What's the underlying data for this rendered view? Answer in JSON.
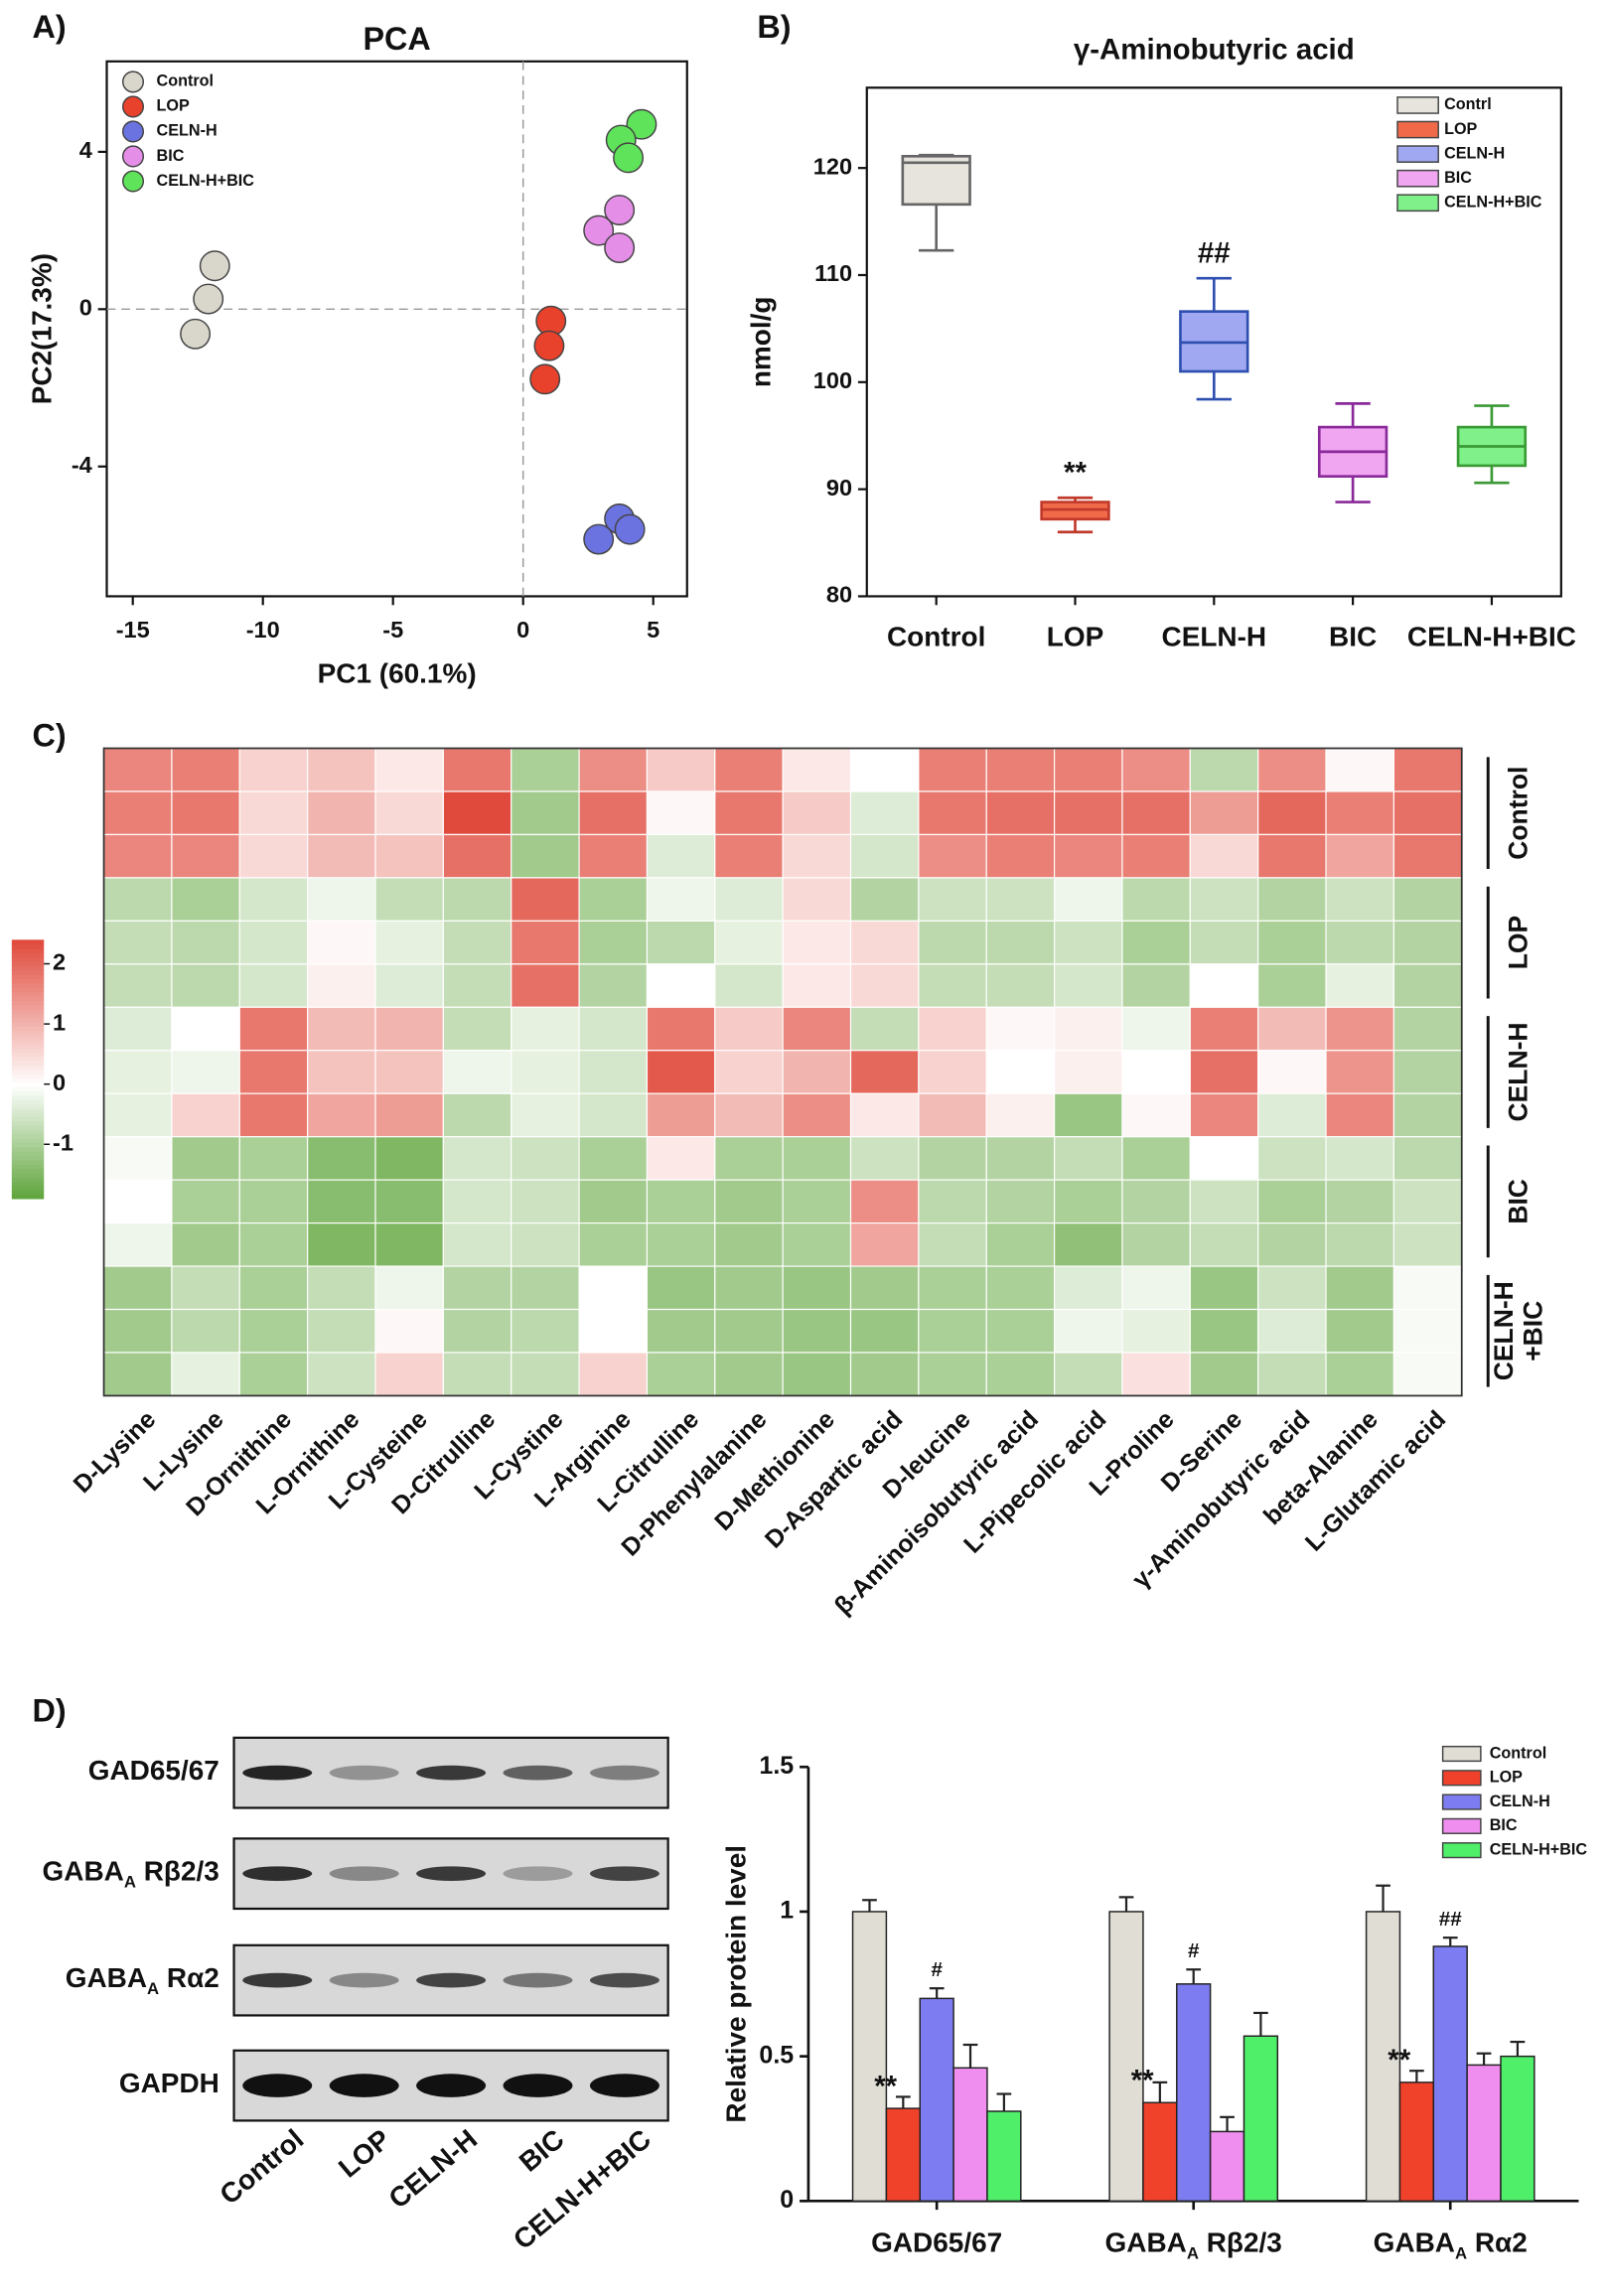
{
  "panels": [
    "A)",
    "B)",
    "C)",
    "D)"
  ],
  "chart_data": [
    {
      "type": "scatter",
      "title": "PCA",
      "xlabel": "PC1 (60.1%)",
      "ylabel": "PC2(17.3%)",
      "xlim": [
        -16,
        6.3
      ],
      "ylim": [
        -7.3,
        6.3
      ],
      "xticks": [
        -15,
        -10,
        -5,
        0,
        5
      ],
      "yticks": [
        4,
        0,
        -4
      ],
      "zero_lines": true,
      "legend": "upper left",
      "series": [
        {
          "name": "Control",
          "color": "#d9d6cc",
          "x": [
            -11.85,
            -12.1,
            -12.6
          ],
          "y": [
            1.1,
            0.26,
            -0.63
          ]
        },
        {
          "name": "LOP",
          "color": "#e8412c",
          "x": [
            1.07,
            1.0,
            0.84
          ],
          "y": [
            -0.3,
            -0.93,
            -1.78
          ]
        },
        {
          "name": "CELN-H",
          "color": "#6b73e0",
          "x": [
            3.7,
            4.1,
            2.9
          ],
          "y": [
            -5.33,
            -5.6,
            -5.85
          ]
        },
        {
          "name": "BIC",
          "color": "#e58ee8",
          "x": [
            3.7,
            2.9,
            3.7
          ],
          "y": [
            2.52,
            2.0,
            1.56
          ]
        },
        {
          "name": "CELN-H+BIC",
          "color": "#5fe35a",
          "x": [
            4.55,
            3.76,
            4.04
          ],
          "y": [
            4.7,
            4.3,
            3.85
          ]
        }
      ]
    },
    {
      "type": "box",
      "title": "γ-Aminobutyric acid",
      "ylabel": "nmol/g",
      "ylim": [
        80,
        127.5
      ],
      "yticks": [
        80,
        90,
        100,
        110,
        120
      ],
      "legend": "upper right",
      "categories": [
        "Control",
        "LOP",
        "CELN-H",
        "BIC",
        "CELN-H+BIC"
      ],
      "series": [
        {
          "name": "Contrl",
          "fill": "#e6e4dd",
          "stroke": "#666666",
          "values": {
            "min": 112.3,
            "q1": 116.6,
            "median": 120.5,
            "q3": 121.1,
            "max": 121.2
          }
        },
        {
          "name": "LOP",
          "fill": "#f06a4a",
          "stroke": "#c0392b",
          "values": {
            "min": 86,
            "q1": 87.2,
            "median": 88.1,
            "q3": 88.8,
            "max": 89.2
          }
        },
        {
          "name": "CELN-H",
          "fill": "#9fa8f0",
          "stroke": "#2f4fb0",
          "values": {
            "min": 98.4,
            "q1": 101,
            "median": 103.7,
            "q3": 106.6,
            "max": 109.7
          }
        },
        {
          "name": "BIC",
          "fill": "#f0a6f0",
          "stroke": "#8a2a9a",
          "values": {
            "min": 88.8,
            "q1": 91.2,
            "median": 93.5,
            "q3": 95.8,
            "max": 98
          }
        },
        {
          "name": "CELN-H+BIC",
          "fill": "#7ff08a",
          "stroke": "#3a9a35",
          "values": {
            "min": 90.6,
            "q1": 92.2,
            "median": 94,
            "q3": 95.8,
            "max": 97.8
          }
        }
      ],
      "annotations": [
        {
          "text": "**",
          "x": "LOP"
        },
        {
          "text": "##",
          "x": "CELN-H"
        }
      ]
    },
    {
      "type": "heatmap",
      "zlim": [
        -1.9,
        2.4
      ],
      "zticks": [
        2,
        1,
        0,
        -1
      ],
      "colors": [
        "#5ea43a",
        "#ffffff",
        "#e04a3c"
      ],
      "columns": [
        "D-Lysine",
        "L-Lysine",
        "D-Ornithine",
        "L-Ornithine",
        "L-Cysteine",
        "D-Citrulline",
        "L-Cystine",
        "L-Arginine",
        "L-Citrulline",
        "D-Phenylalanine",
        "D-Methionine",
        "D-Aspartic acid",
        "D-leucine",
        "β-Aminoisobutyric acid",
        "L-Pipecolic acid",
        "L-Proline",
        "D-Serine",
        "γ-Aminobutyric acid",
        "beta-Alanine",
        "L-Glutamic acid"
      ],
      "groups": [
        [
          "Control"
        ],
        [
          "LOP"
        ],
        [
          "CELN-H"
        ],
        [
          "BIC"
        ],
        [
          "CELN-H",
          "+BIC"
        ]
      ],
      "values": [
        [
          1.6,
          1.7,
          0.6,
          0.8,
          0.3,
          1.8,
          -1.0,
          1.5,
          0.7,
          1.7,
          0.3,
          0.0,
          1.7,
          1.7,
          1.7,
          1.5,
          -0.8,
          1.5,
          0.1,
          1.8
        ],
        [
          1.7,
          1.8,
          0.5,
          1.0,
          0.5,
          2.4,
          -1.1,
          1.9,
          0.1,
          1.8,
          0.7,
          -0.4,
          1.8,
          1.9,
          1.9,
          1.9,
          1.3,
          2.0,
          1.7,
          1.9
        ],
        [
          1.6,
          1.6,
          0.5,
          0.9,
          0.8,
          1.9,
          -1.1,
          1.7,
          -0.4,
          1.7,
          0.5,
          -0.5,
          1.5,
          1.7,
          1.6,
          1.7,
          0.5,
          1.8,
          1.2,
          1.8
        ],
        [
          -0.8,
          -1.0,
          -0.5,
          -0.2,
          -0.7,
          -0.8,
          2.0,
          -1.0,
          -0.2,
          -0.4,
          0.5,
          -0.9,
          -0.6,
          -0.6,
          -0.2,
          -0.8,
          -0.6,
          -0.9,
          -0.6,
          -0.9
        ],
        [
          -0.7,
          -0.8,
          -0.5,
          0.1,
          -0.3,
          -0.7,
          1.8,
          -1.0,
          -0.8,
          -0.3,
          0.3,
          0.5,
          -0.8,
          -0.8,
          -0.6,
          -1.0,
          -0.7,
          -1.0,
          -0.8,
          -0.9
        ],
        [
          -0.7,
          -0.8,
          -0.5,
          0.2,
          -0.4,
          -0.7,
          1.9,
          -0.9,
          0.0,
          -0.5,
          0.3,
          0.5,
          -0.7,
          -0.7,
          -0.5,
          -0.9,
          0.0,
          -1.0,
          -0.3,
          -0.9
        ],
        [
          -0.4,
          0.0,
          1.8,
          0.9,
          1.0,
          -0.7,
          -0.3,
          -0.5,
          1.8,
          0.7,
          1.6,
          -0.7,
          0.6,
          0.1,
          0.2,
          -0.2,
          1.7,
          0.9,
          1.4,
          -0.9
        ],
        [
          -0.3,
          -0.2,
          1.8,
          0.8,
          0.8,
          -0.2,
          -0.3,
          -0.5,
          2.2,
          0.6,
          1.0,
          2.0,
          0.6,
          0.0,
          0.2,
          0.0,
          1.9,
          0.1,
          1.4,
          -0.9
        ],
        [
          -0.3,
          0.6,
          1.8,
          1.2,
          1.3,
          -0.8,
          -0.3,
          -0.5,
          1.3,
          0.9,
          1.5,
          0.3,
          0.9,
          0.2,
          -1.2,
          0.1,
          1.6,
          -0.4,
          1.6,
          -0.9
        ],
        [
          -0.1,
          -1.1,
          -1.0,
          -1.4,
          -1.5,
          -0.5,
          -0.6,
          -1.0,
          0.3,
          -1.0,
          -1.0,
          -0.6,
          -0.9,
          -0.9,
          -0.7,
          -1.0,
          0.0,
          -0.6,
          -0.5,
          -0.8
        ],
        [
          0.0,
          -1.0,
          -1.0,
          -1.4,
          -1.4,
          -0.5,
          -0.6,
          -1.1,
          -1.0,
          -1.1,
          -1.0,
          1.5,
          -0.8,
          -0.9,
          -1.0,
          -0.9,
          -0.6,
          -1.0,
          -0.9,
          -0.6
        ],
        [
          -0.2,
          -1.1,
          -1.0,
          -1.5,
          -1.5,
          -0.5,
          -0.6,
          -1.0,
          -1.0,
          -1.1,
          -1.0,
          1.2,
          -0.7,
          -1.0,
          -1.3,
          -0.9,
          -0.7,
          -0.9,
          -0.8,
          -0.6
        ],
        [
          -1.1,
          -0.7,
          -1.0,
          -0.7,
          -0.2,
          -0.9,
          -0.9,
          0.0,
          -1.2,
          -1.1,
          -1.2,
          -1.1,
          -1.0,
          -1.0,
          -0.4,
          -0.2,
          -1.2,
          -0.6,
          -1.1,
          -0.1
        ],
        [
          -1.1,
          -0.8,
          -1.0,
          -0.7,
          0.1,
          -0.9,
          -0.8,
          0.0,
          -1.1,
          -1.1,
          -1.2,
          -1.2,
          -1.0,
          -1.0,
          -0.2,
          -0.3,
          -1.2,
          -0.4,
          -1.1,
          -0.1
        ],
        [
          -1.1,
          -0.3,
          -1.0,
          -0.6,
          0.6,
          -0.7,
          -0.7,
          0.6,
          -1.0,
          -1.1,
          -1.2,
          -1.1,
          -1.0,
          -1.0,
          -0.7,
          0.4,
          -1.1,
          -0.7,
          -1.0,
          -0.1
        ]
      ]
    },
    {
      "type": "bar",
      "ylabel": "Relative protein level",
      "ylim": [
        0,
        1.5
      ],
      "yticks": [
        0,
        0.5,
        1,
        1.5
      ],
      "legend": "upper right",
      "categories": [
        [
          "GAD65/67"
        ],
        [
          "GABA",
          "A",
          " Rβ2/3"
        ],
        [
          "GABA",
          "A",
          " Rα2"
        ]
      ],
      "series": [
        {
          "name": "Control",
          "color": "#e0ddd5",
          "values": [
            1.0,
            1.0,
            1.0
          ],
          "errors": [
            0.04,
            0.05,
            0.09
          ]
        },
        {
          "name": "LOP",
          "color": "#f0412a",
          "values": [
            0.32,
            0.34,
            0.41
          ],
          "errors": [
            0.04,
            0.07,
            0.04
          ]
        },
        {
          "name": "CELN-H",
          "color": "#7d7cf0",
          "values": [
            0.7,
            0.75,
            0.88
          ],
          "errors": [
            0.035,
            0.05,
            0.03
          ]
        },
        {
          "name": "BIC",
          "color": "#f08ef0",
          "values": [
            0.46,
            0.24,
            0.47
          ],
          "errors": [
            0.08,
            0.05,
            0.04
          ]
        },
        {
          "name": "CELN-H+BIC",
          "color": "#4fef6a",
          "values": [
            0.31,
            0.57,
            0.5
          ],
          "errors": [
            0.06,
            0.08,
            0.05
          ]
        }
      ],
      "annotations": [
        {
          "text": "**",
          "series": "LOP",
          "category": 0
        },
        {
          "text": "**",
          "series": "LOP",
          "category": 1
        },
        {
          "text": "**",
          "series": "LOP",
          "category": 2
        },
        {
          "text": "#",
          "series": "CELN-H",
          "category": 0
        },
        {
          "text": "#",
          "series": "CELN-H",
          "category": 1
        },
        {
          "text": "##",
          "series": "CELN-H",
          "category": 2
        }
      ]
    }
  ],
  "blot": {
    "rows": [
      [
        "GAD65/67"
      ],
      [
        "GABA",
        "A",
        " Rβ2/3"
      ],
      [
        "GABA",
        "A",
        " Rα2"
      ],
      [
        "GAPDH"
      ]
    ],
    "lanes": [
      "Control",
      "LOP",
      "CELN-H",
      "BIC",
      "CELN-H+BIC"
    ]
  }
}
